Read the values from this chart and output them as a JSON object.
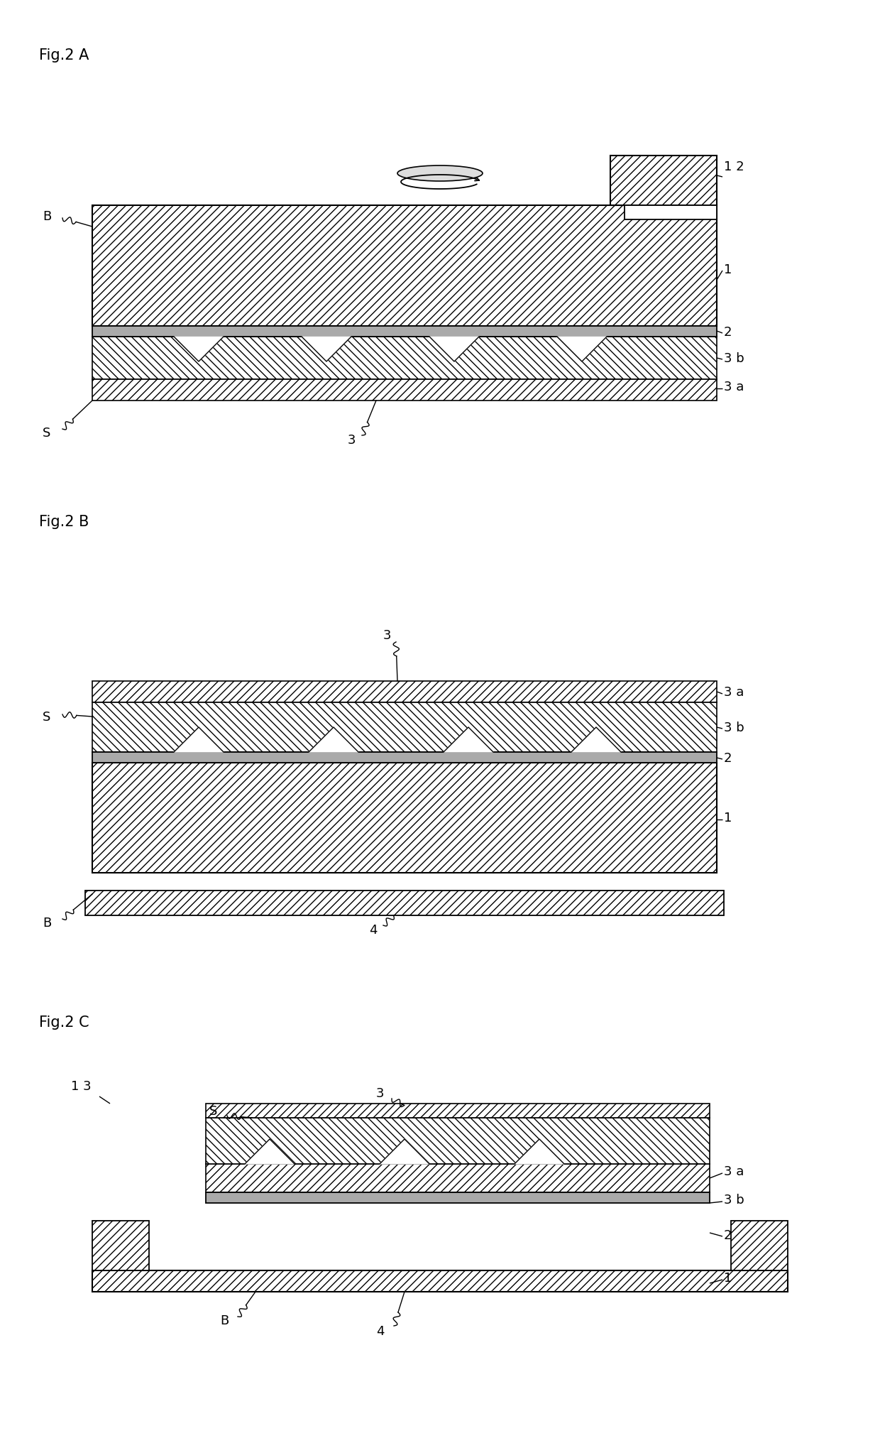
{
  "fig_title_A": "Fig.2 A",
  "fig_title_B": "Fig.2 B",
  "fig_title_C": "Fig.2 C",
  "bg_color": "#ffffff",
  "font_size_title": 15,
  "font_size_label": 13
}
